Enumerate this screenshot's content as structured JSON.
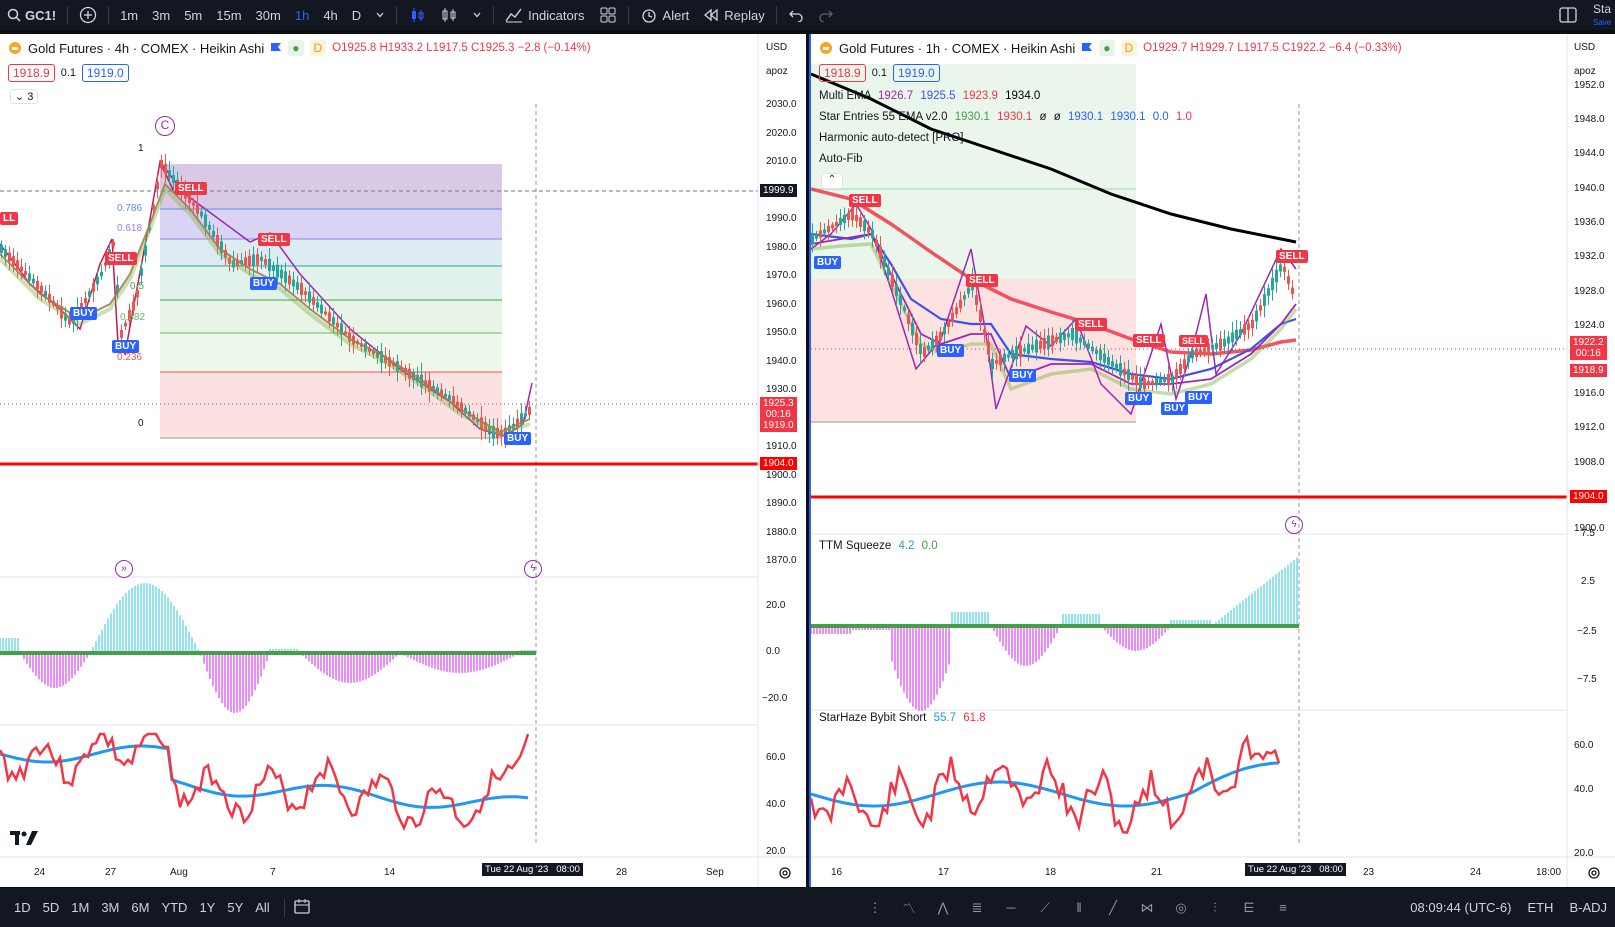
{
  "toolbar": {
    "symbol": "GC1!",
    "intervals": [
      "1m",
      "3m",
      "5m",
      "15m",
      "30m",
      "1h",
      "4h",
      "D"
    ],
    "active_interval": "1h",
    "indicators_label": "Indicators",
    "alert_label": "Alert",
    "replay_label": "Replay",
    "corner_label": "Sta",
    "corner_sub": "Save"
  },
  "left_chart": {
    "title": "Gold Futures · 4h · COMEX · Heikin Ashi",
    "ohlc": {
      "o": "O1925.8",
      "h": "H1933.2",
      "l": "L1917.5",
      "c": "C1925.3",
      "chg": "−2.8 (−0.14%)"
    },
    "bid": "1918.9",
    "spread": "0.1",
    "ask": "1919.0",
    "collapse_count": "3",
    "currency": "USD",
    "scale_mode": "apoz",
    "price_ticks": [
      "2030.0",
      "2020.0",
      "2010.0",
      "1999.9",
      "1990.0",
      "1980.0",
      "1970.0",
      "1960.0",
      "1950.0",
      "1940.0",
      "1930.0",
      "1910.0",
      "1900.0",
      "1890.0",
      "1880.0",
      "1870.0"
    ],
    "last_price": "1925.3",
    "countdown": "00:16",
    "bid_price": "1919.0",
    "level_price": "1904.0",
    "crosshair_price": "1999.9",
    "fib_labels": [
      "1",
      "0.786",
      "0.618",
      "0.5",
      "0.382",
      "0.236",
      "0"
    ],
    "signals": [
      "SELL",
      "SELL",
      "SELL",
      "BUY",
      "BUY",
      "BUY",
      "BUY"
    ],
    "osc_ticks": [
      "20.0",
      "0.0",
      "−20.0"
    ],
    "rsi_ticks": [
      "60.0",
      "40.0",
      "20.0"
    ],
    "x_labels": [
      "24",
      "27",
      "Aug",
      "7",
      "14",
      "28",
      "Sep"
    ],
    "date_cursor": "Tue 22 Aug '23",
    "time_cursor": "08:00",
    "logo": "TV"
  },
  "right_chart": {
    "title": "Gold Futures · 1h · COMEX · Heikin Ashi",
    "ohlc": {
      "o": "O1929.7",
      "h": "H1929.7",
      "l": "L1917.5",
      "c": "C1922.2",
      "chg": "−6.4 (−0.33%)"
    },
    "bid": "1918.9",
    "spread": "0.1",
    "ask": "1919.0",
    "currency": "USD",
    "scale_mode": "apoz",
    "price_ticks": [
      "1952.0",
      "1948.0",
      "1944.0",
      "1940.0",
      "1936.0",
      "1932.0",
      "1928.0",
      "1924.0",
      "1916.0",
      "1912.0",
      "1908.0",
      "1900.0"
    ],
    "last_price": "1922.2",
    "countdown": "00:16",
    "bid_price": "1918.9",
    "level_price": "1904.0",
    "indicators": [
      {
        "name": "Multi EMA",
        "values": [
          "1926.7",
          "1925.5",
          "1923.9",
          "1934.0"
        ]
      },
      {
        "name": "Star Entries 55 EMA v2.0",
        "values": [
          "1930.1",
          "1930.1",
          "ø",
          "ø",
          "1930.1",
          "1930.1",
          "0.0",
          "1.0"
        ]
      },
      {
        "name": "Harmonic auto-detect [PRO]",
        "values": []
      },
      {
        "name": "Auto-Fib",
        "values": []
      }
    ],
    "squeeze_label": "TTM Squeeze",
    "squeeze_values": [
      "4.2",
      "0.0"
    ],
    "osc_ticks": [
      "7.5",
      "2.5",
      "−2.5",
      "−7.5"
    ],
    "starhaze_label": "StarHaze Bybit Short",
    "starhaze_values": [
      "55.7",
      "61.8"
    ],
    "rsi_ticks": [
      "60.0",
      "40.0",
      "20.0"
    ],
    "x_labels": [
      "16",
      "17",
      "18",
      "21",
      "23",
      "24",
      "18:00"
    ],
    "date_cursor": "Tue 22 Aug '23",
    "time_cursor": "08:00",
    "signals": [
      "SELL",
      "SELL",
      "SELL",
      "SELL",
      "SELL",
      "BUY",
      "BUY",
      "BUY",
      "BUY",
      "BUY",
      "BUY"
    ]
  },
  "bottombar": {
    "ranges": [
      "1D",
      "5D",
      "1M",
      "3M",
      "6M",
      "YTD",
      "1Y",
      "5Y",
      "All"
    ],
    "clock": "08:09:44 (UTC-6)",
    "session": "ETH",
    "adjust": "B-ADJ"
  }
}
